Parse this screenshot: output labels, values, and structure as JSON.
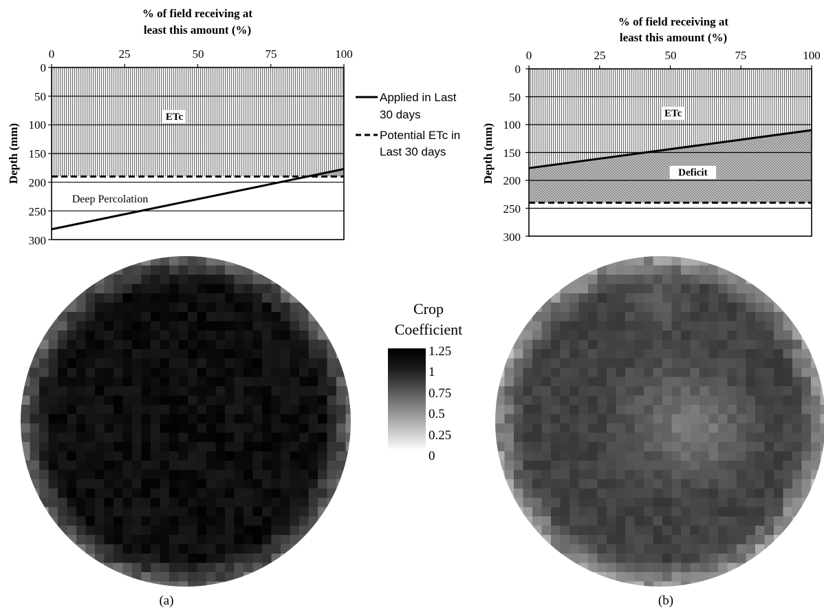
{
  "chart_data": [
    {
      "panel": "(a)",
      "type": "area",
      "top_axis_title": [
        "% of field receiving at",
        "least this amount (%)"
      ],
      "ylabel": "Depth (mm)",
      "xlim": [
        0,
        100
      ],
      "ylim": [
        0,
        300
      ],
      "x_ticks": [
        "0",
        "25",
        "50",
        "75",
        "100"
      ],
      "y_ticks": [
        "0",
        "50",
        "100",
        "150",
        "200",
        "250",
        "300"
      ],
      "y_gridlines": [
        50,
        100,
        150,
        200,
        250
      ],
      "applied_line": {
        "x": [
          0,
          100
        ],
        "y": [
          282,
          177
        ]
      },
      "potential_etc": 190,
      "regions": [
        {
          "label": "ETc",
          "x": 42,
          "y": 85
        },
        {
          "label": "Deep Percolation",
          "x": 20,
          "y": 229
        }
      ],
      "legend": [
        {
          "style": "solid",
          "label": [
            "Applied in Last",
            "30 days"
          ]
        },
        {
          "style": "dashed",
          "label": [
            "Potential ETc in",
            "Last 30 days"
          ]
        }
      ]
    },
    {
      "panel": "(b)",
      "type": "area",
      "top_axis_title": [
        "% of field receiving at",
        "least this amount (%)"
      ],
      "ylabel": "Depth (mm)",
      "xlim": [
        0,
        100
      ],
      "ylim": [
        0,
        300
      ],
      "x_ticks": [
        "0",
        "25",
        "50",
        "75",
        "100"
      ],
      "y_ticks": [
        "0",
        "50",
        "100",
        "150",
        "200",
        "250",
        "300"
      ],
      "y_gridlines": [
        50,
        100,
        150,
        200,
        250
      ],
      "applied_line": {
        "x": [
          0,
          100
        ],
        "y": [
          178,
          110
        ]
      },
      "potential_etc": 240,
      "regions": [
        {
          "label": "ETc",
          "x": 51,
          "y": 79
        },
        {
          "label": "Deficit",
          "x": 58,
          "y": 185
        }
      ]
    },
    {
      "type": "heatmap",
      "colorbar_title": [
        "Crop",
        "Coefficient"
      ],
      "colorbar_ticks": [
        "1.25",
        "1",
        "0.75",
        "0.5",
        "0.25",
        "0"
      ],
      "range": [
        0,
        1.25
      ],
      "maps": [
        {
          "panel": "(a)",
          "mean": 1.17
        },
        {
          "panel": "(b)",
          "mean": 0.88
        }
      ]
    }
  ],
  "panel_labels": [
    "(a)",
    "(b)"
  ]
}
